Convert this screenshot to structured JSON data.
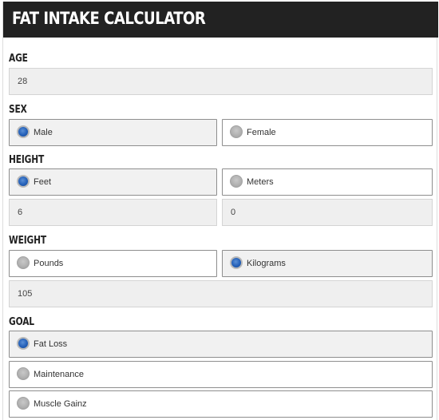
{
  "title": "FAT INTAKE CALCULATOR",
  "age": {
    "label": "AGE",
    "value": "28"
  },
  "sex": {
    "label": "SEX",
    "options": [
      "Male",
      "Female"
    ],
    "selected": "Male"
  },
  "height": {
    "label": "HEIGHT",
    "options": [
      "Feet",
      "Meters"
    ],
    "selected": "Feet",
    "feet_value": "6",
    "meters_value": "0"
  },
  "weight": {
    "label": "WEIGHT",
    "options": [
      "Pounds",
      "Kilograms"
    ],
    "selected": "Kilograms",
    "value": "105"
  },
  "goal": {
    "label": "GOAL",
    "options": [
      "Fat Loss",
      "Maintenance",
      "Muscle Gainz"
    ],
    "selected": "Fat Loss"
  },
  "colors": {
    "header_bg": "#222222",
    "radio_selected": "#2460b8"
  }
}
